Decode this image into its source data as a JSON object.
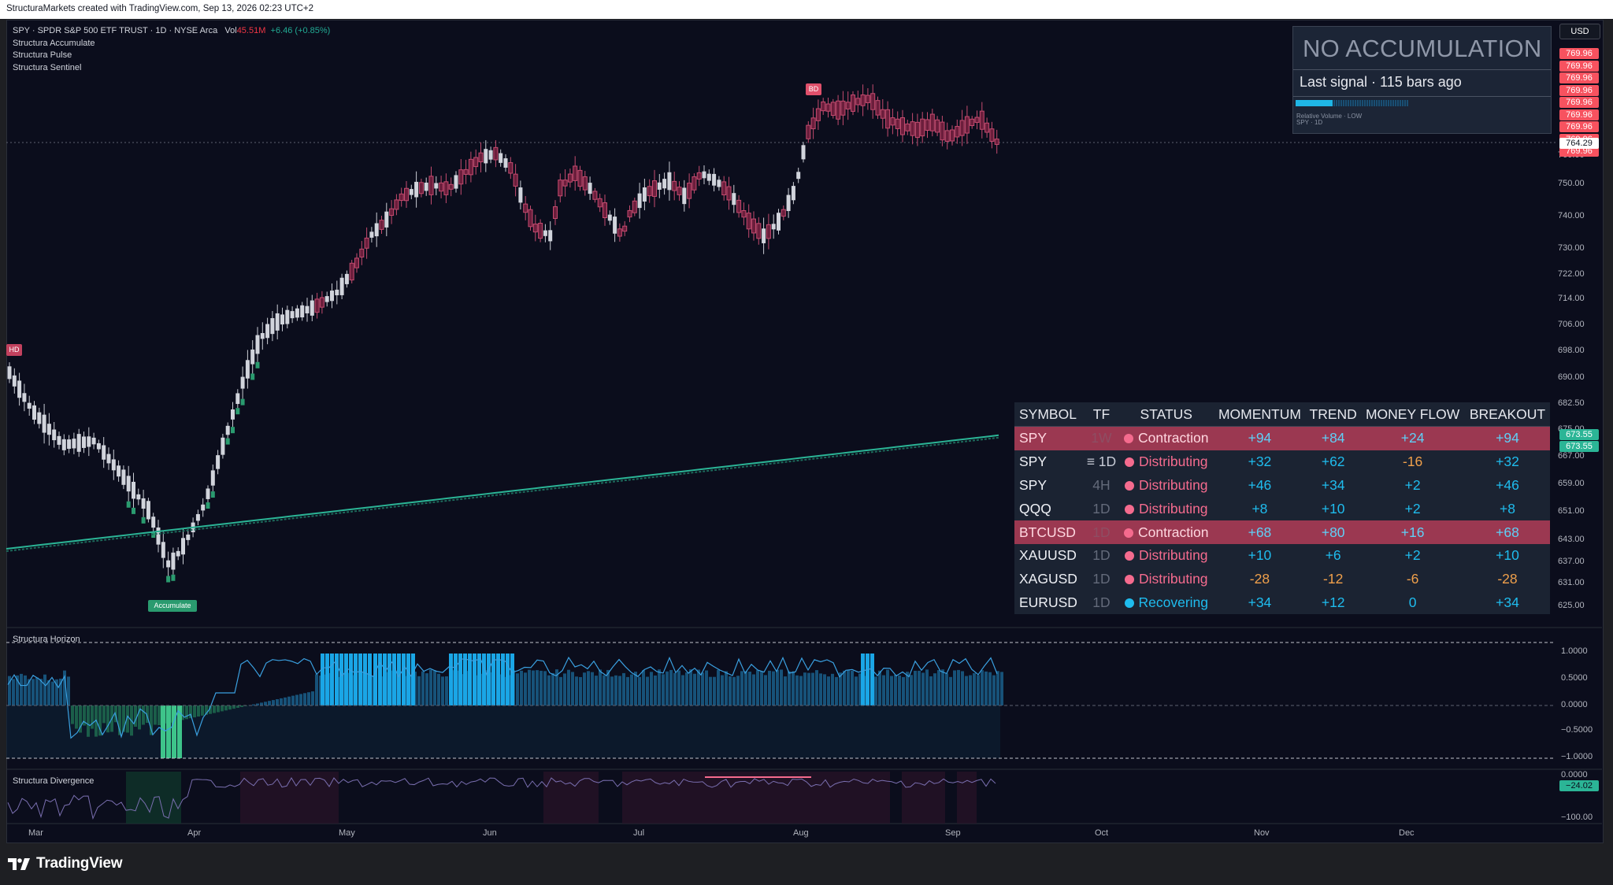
{
  "header": {
    "attribution": "StructuraMarkets created with TradingView.com, Sep 13, 2026 02:23 UTC+2"
  },
  "legend": {
    "symbol_line": "SPY · SPDR S&P 500 ETF TRUST · 1D · NYSE Arca",
    "vol_label": "Vol",
    "vol_value": "45.51M",
    "change": "+6.46 (+0.85%)",
    "indicators": [
      "Structura Accumulate",
      "Structura Pulse",
      "Structura Sentinel"
    ]
  },
  "panes": {
    "horizon_label": "Structura Horizon",
    "divergence_label": "Structura Divergence"
  },
  "price_axis": {
    "currency": "USD",
    "labels": [
      "760.00",
      "750.00",
      "740.00",
      "730.00",
      "722.00",
      "714.00",
      "706.00",
      "698.00",
      "690.00",
      "682.50",
      "675.00",
      "667.00",
      "659.00",
      "651.00",
      "643.00",
      "637.00",
      "631.00",
      "625.00"
    ],
    "horizon_labels": [
      "1.0000",
      "0.5000",
      "0.0000",
      "−0.5000",
      "−1.0000"
    ],
    "divergence_labels": [
      "0.0000",
      "−100.00"
    ],
    "last_price": "764.29",
    "stack_tags": [
      "769.96",
      "769.96",
      "769.96",
      "769.96",
      "769.96",
      "769.96",
      "769.96",
      "769.96",
      "769.96"
    ],
    "ma_tags": [
      "673.55",
      "673.55"
    ],
    "divergence_tag": "−24.02",
    "colors": {
      "red_tag": "#f7525f",
      "green_tag": "#2bb596",
      "last_tag": "#ffffff"
    }
  },
  "time_axis": [
    "Mar",
    "Apr",
    "May",
    "Jun",
    "Jul",
    "Aug",
    "Sep",
    "Oct",
    "Nov",
    "Dec"
  ],
  "markers": {
    "hd": "HD",
    "bd": "BD",
    "accumulate": "Accumulate"
  },
  "signal_panel": {
    "title": "NO ACCUMULATION",
    "subtitle": "Last signal · 115 bars ago",
    "relative_volume_fraction": 0.33,
    "meta_line1": "Relative Volume · LOW",
    "meta_line2": "SPY · 1D"
  },
  "table": {
    "headers": [
      "SYMBOL",
      "TF",
      "STATUS",
      "MOMENTUM",
      "TREND",
      "MONEY FLOW",
      "BREAKOUT"
    ],
    "rows": [
      {
        "symbol": "SPY",
        "tf": "1W",
        "status": "Contraction",
        "status_color": "pink",
        "momentum": "+94",
        "trend": "+84",
        "money_flow": "+24",
        "breakout": "+94",
        "highlight": true
      },
      {
        "symbol": "SPY",
        "tf": "≡ 1D",
        "status": "Distributing",
        "status_color": "pink",
        "momentum": "+32",
        "trend": "+62",
        "money_flow": "-16",
        "breakout": "+32",
        "highlight": false,
        "active": true
      },
      {
        "symbol": "SPY",
        "tf": "4H",
        "status": "Distributing",
        "status_color": "pink",
        "momentum": "+46",
        "trend": "+34",
        "money_flow": "+2",
        "breakout": "+46",
        "highlight": false
      },
      {
        "symbol": "QQQ",
        "tf": "1D",
        "status": "Distributing",
        "status_color": "pink",
        "momentum": "+8",
        "trend": "+10",
        "money_flow": "+2",
        "breakout": "+8",
        "highlight": false
      },
      {
        "symbol": "BTCUSD",
        "tf": "1D",
        "status": "Contraction",
        "status_color": "pink",
        "momentum": "+68",
        "trend": "+80",
        "money_flow": "+16",
        "breakout": "+68",
        "highlight": true
      },
      {
        "symbol": "XAUUSD",
        "tf": "1D",
        "status": "Distributing",
        "status_color": "pink",
        "momentum": "+10",
        "trend": "+6",
        "money_flow": "+2",
        "breakout": "+10",
        "highlight": false
      },
      {
        "symbol": "XAGUSD",
        "tf": "1D",
        "status": "Distributing",
        "status_color": "pink",
        "momentum": "-28",
        "trend": "-12",
        "money_flow": "-6",
        "breakout": "-28",
        "highlight": false
      },
      {
        "symbol": "EURUSD",
        "tf": "1D",
        "status": "Recovering",
        "status_color": "cyan",
        "momentum": "+34",
        "trend": "+12",
        "money_flow": "0",
        "breakout": "+34",
        "highlight": false
      }
    ]
  },
  "footer": {
    "brand": "TradingView"
  },
  "colors": {
    "bg": "#0b0d1c",
    "candle_white": "#d1d4dc",
    "candle_maroon": "#6b1e3c",
    "accent_cyan": "#1fbcee",
    "accent_green": "#2bb596",
    "accent_pink": "#f56b8e",
    "accent_orange": "#f0a04b"
  }
}
